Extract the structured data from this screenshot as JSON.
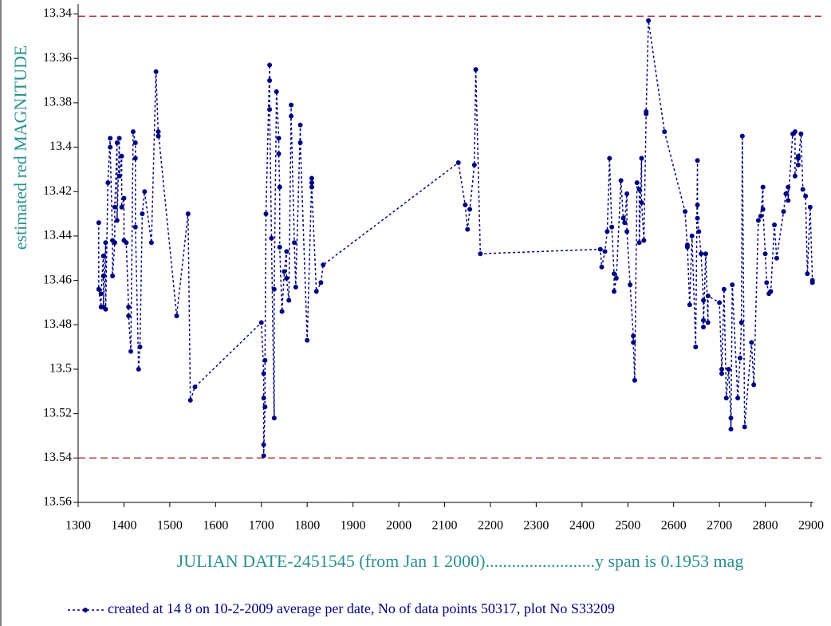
{
  "chart_data": {
    "type": "line",
    "ylabel": "estimated red MAGNITUDE",
    "xlabel": "JULIAN DATE-2451545 (from Jan 1 2000).........................y span is 0.1953 mag",
    "xlim": [
      1300,
      2900
    ],
    "ylim": [
      13.56,
      13.3355
    ],
    "xticks": [
      1300,
      1400,
      1500,
      1600,
      1700,
      1800,
      1900,
      2000,
      2100,
      2200,
      2300,
      2400,
      2500,
      2600,
      2700,
      2800,
      2900
    ],
    "yticks": [
      13.34,
      13.36,
      13.38,
      13.4,
      13.42,
      13.44,
      13.46,
      13.48,
      13.5,
      13.52,
      13.54,
      13.56
    ],
    "reference_lines": [
      13.341,
      13.54
    ],
    "reference_color": "#a52a2a",
    "label_color": "#2a9090",
    "series": [
      {
        "name": "created at 14 8 on 10-2-2009 average per date, No of data points 50317,  plot No S33209",
        "color": "#000080",
        "x": [
          1345,
          1345,
          1350,
          1350,
          1355,
          1355,
          1355,
          1360,
          1360,
          1365,
          1370,
          1370,
          1375,
          1375,
          1380,
          1380,
          1385,
          1385,
          1390,
          1390,
          1395,
          1395,
          1400,
          1400,
          1405,
          1410,
          1410,
          1415,
          1420,
          1425,
          1425,
          1425,
          1432,
          1435,
          1440,
          1445,
          1460,
          1470,
          1475,
          1475,
          1515,
          1540,
          1545,
          1555,
          1700,
          1705,
          1705,
          1705,
          1705,
          1708,
          1708,
          1710,
          1718,
          1718,
          1718,
          1722,
          1728,
          1728,
          1733,
          1738,
          1738,
          1740,
          1740,
          1745,
          1750,
          1755,
          1755,
          1760,
          1765,
          1765,
          1772,
          1775,
          1785,
          1785,
          1800,
          1810,
          1810,
          1810,
          1820,
          1830,
          1835,
          2130,
          2145,
          2150,
          2155,
          2165,
          2168,
          2178,
          2440,
          2443,
          2450,
          2455,
          2460,
          2465,
          2470,
          2470,
          2475,
          2485,
          2490,
          2493,
          2498,
          2498,
          2505,
          2512,
          2512,
          2515,
          2520,
          2525,
          2525,
          2530,
          2530,
          2535,
          2540,
          2540,
          2545,
          2580,
          2625,
          2630,
          2630,
          2635,
          2640,
          2648,
          2652,
          2652,
          2652,
          2655,
          2660,
          2665,
          2665,
          2665,
          2670,
          2675,
          2675,
          2700,
          2705,
          2705,
          2710,
          2715,
          2720,
          2725,
          2725,
          2728,
          2740,
          2745,
          2748,
          2750,
          2755,
          2770,
          2775,
          2785,
          2790,
          2795,
          2795,
          2800,
          2803,
          2808,
          2812,
          2820,
          2825,
          2840,
          2845,
          2850,
          2850,
          2860,
          2865,
          2865,
          2872,
          2872,
          2872,
          2878,
          2882,
          2888,
          2892,
          2898,
          2903,
          2903
        ],
        "values": [
          13.434,
          13.464,
          13.472,
          13.466,
          13.449,
          13.458,
          13.472,
          13.443,
          13.473,
          13.416,
          13.396,
          13.4,
          13.442,
          13.458,
          13.443,
          13.427,
          13.398,
          13.433,
          13.396,
          13.413,
          13.404,
          13.427,
          13.423,
          13.442,
          13.443,
          13.472,
          13.476,
          13.492,
          13.393,
          13.398,
          13.405,
          13.436,
          13.5,
          13.49,
          13.43,
          13.42,
          13.443,
          13.366,
          13.395,
          13.393,
          13.476,
          13.43,
          13.514,
          13.508,
          13.479,
          13.502,
          13.513,
          13.534,
          13.539,
          13.517,
          13.496,
          13.43,
          13.363,
          13.37,
          13.383,
          13.441,
          13.522,
          13.464,
          13.375,
          13.396,
          13.403,
          13.418,
          13.445,
          13.474,
          13.456,
          13.447,
          13.459,
          13.469,
          13.381,
          13.386,
          13.443,
          13.463,
          13.39,
          13.398,
          13.487,
          13.414,
          13.416,
          13.418,
          13.465,
          13.461,
          13.453,
          13.407,
          13.426,
          13.437,
          13.428,
          13.408,
          13.365,
          13.448,
          13.446,
          13.454,
          13.447,
          13.438,
          13.405,
          13.436,
          13.457,
          13.465,
          13.459,
          13.415,
          13.432,
          13.434,
          13.421,
          13.438,
          13.462,
          13.485,
          13.488,
          13.505,
          13.416,
          13.419,
          13.443,
          13.405,
          13.425,
          13.442,
          13.385,
          13.384,
          13.343,
          13.393,
          13.429,
          13.445,
          13.444,
          13.471,
          13.44,
          13.49,
          13.406,
          13.426,
          13.432,
          13.438,
          13.448,
          13.469,
          13.478,
          13.481,
          13.448,
          13.479,
          13.467,
          13.47,
          13.5,
          13.502,
          13.464,
          13.513,
          13.5,
          13.522,
          13.527,
          13.462,
          13.513,
          13.495,
          13.479,
          13.395,
          13.526,
          13.488,
          13.507,
          13.433,
          13.431,
          13.418,
          13.428,
          13.448,
          13.461,
          13.466,
          13.465,
          13.435,
          13.45,
          13.429,
          13.421,
          13.418,
          13.424,
          13.394,
          13.393,
          13.413,
          13.405,
          13.404,
          13.408,
          13.394,
          13.419,
          13.422,
          13.457,
          13.427,
          13.46,
          13.461
        ]
      }
    ]
  }
}
